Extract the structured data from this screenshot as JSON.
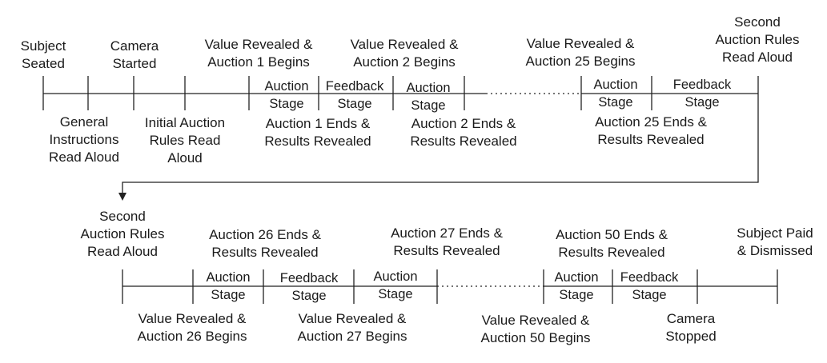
{
  "row1": {
    "top_labels": {
      "subject_seated": "Subject\nSeated",
      "camera_started": "Camera\nStarted",
      "value_revealed_1": "Value Revealed &\nAuction 1 Begins",
      "value_revealed_2": "Value Revealed &\nAuction 2 Begins",
      "value_revealed_25": "Value Revealed &\nAuction 25 Begins",
      "second_rules": "Second\nAuction Rules\nRead Aloud"
    },
    "bottom_labels": {
      "general_instructions": "General\nInstructions\nRead Aloud",
      "initial_rules": "Initial Auction\nRules Read\nAloud",
      "auction_1_ends": "Auction 1 Ends &\nResults Revealed",
      "auction_2_ends": "Auction 2 Ends &\nResults Revealed",
      "auction_25_ends": "Auction 25 Ends &\nResults Revealed"
    },
    "stages": {
      "a1": "Auction\nStage",
      "f1": "Feedback\nStage",
      "a2": "Auction\nStage",
      "a25": "Auction\nStage",
      "f25": "Feedback\nStage"
    }
  },
  "row2": {
    "top_labels": {
      "second_rules": "Second\nAuction Rules\nRead Aloud",
      "auction_26_ends": "Auction 26 Ends &\nResults Revealed",
      "auction_27_ends": "Auction 27 Ends &\nResults Revealed",
      "auction_50_ends": "Auction 50 Ends &\nResults Revealed",
      "subject_paid": "Subject Paid\n& Dismissed"
    },
    "bottom_labels": {
      "value_revealed_26": "Value Revealed &\nAuction 26 Begins",
      "value_revealed_27": "Value Revealed &\nAuction 27 Begins",
      "value_revealed_50": "Value Revealed &\nAuction 50 Begins",
      "camera_stopped": "Camera\nStopped"
    },
    "stages": {
      "a26": "Auction\nStage",
      "f26": "Feedback\nStage",
      "a27": "Auction\nStage",
      "a50": "Auction\nStage",
      "f50": "Feedback\nStage"
    }
  }
}
